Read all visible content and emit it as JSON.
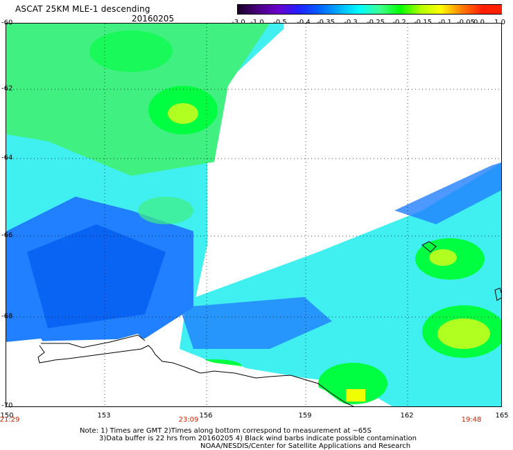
{
  "header": {
    "title": "ASCAT 25KM MLE-1 descending",
    "date": "20160205"
  },
  "colorbar": {
    "labels": [
      "-3.0",
      "-1.0",
      "-0.5",
      "-0.4",
      "-0.35",
      "-0.3",
      "-0.25",
      "-0.2",
      "-0.15",
      "-0.1",
      "-0.05",
      "0.0",
      "1.0"
    ],
    "colors": [
      "#1a0026",
      "#4a0080",
      "#6a00cc",
      "#2020ff",
      "#0060ff",
      "#00b0ff",
      "#00ffff",
      "#40ff90",
      "#00ff00",
      "#b0ff00",
      "#ffff00",
      "#ff8000",
      "#ff2000"
    ]
  },
  "map": {
    "lat_labels": [
      "-60",
      "-62",
      "-64",
      "-66",
      "-68",
      "-70"
    ],
    "lon_labels": [
      "150",
      "153",
      "156",
      "159",
      "162",
      "165"
    ],
    "time_labels": [
      "21:29",
      "23:09",
      "19:48"
    ],
    "colors": {
      "land_fill": "#ffffff",
      "coast": "#000000",
      "grid": "#000000",
      "cyan": "#40f0f0",
      "cyan_dark": "#20d8f0",
      "green": "#40f080",
      "green_bright": "#00ff40",
      "lime": "#b0ff20",
      "yellow": "#f0ff00",
      "blue": "#2080ff",
      "blue_dark": "#0058f0"
    }
  },
  "notes": {
    "line1": "Note: 1) Times are GMT 2)Times along bottom correspond to measurement at ~65S",
    "line2": "3)Data buffer is 22 hrs from 20160205 4) Black wind barbs indicate possible contamination",
    "line3": "NOAA/NESDIS/Center for Satellite Applications and Research"
  }
}
